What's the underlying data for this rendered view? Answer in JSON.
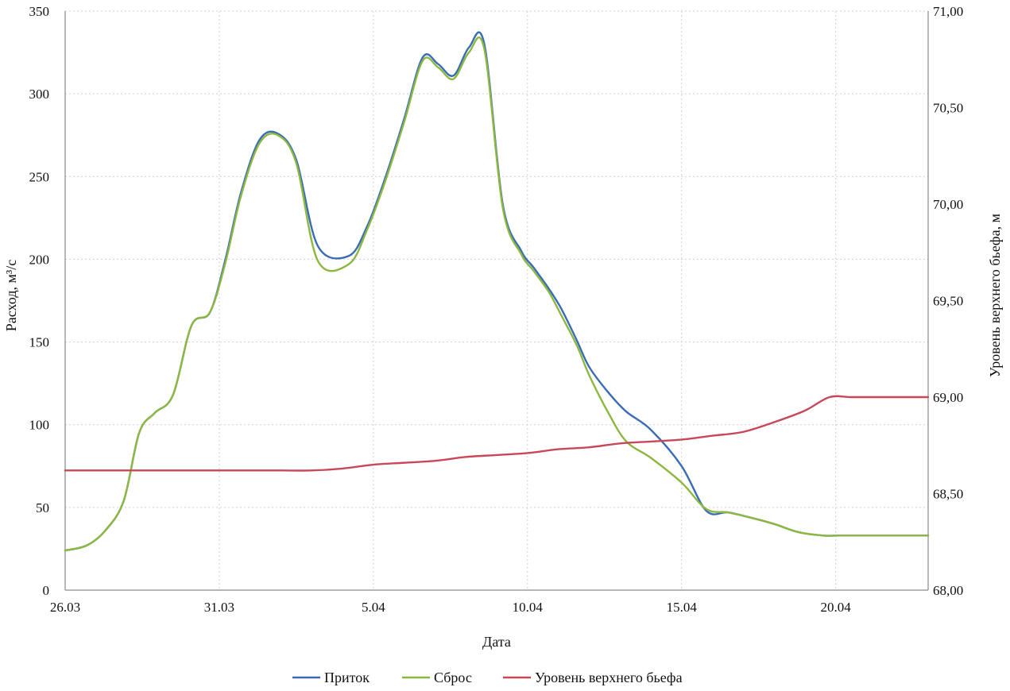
{
  "chart_data": {
    "type": "line",
    "title": "",
    "xlabel": "Дата",
    "ylabel_left": "Расход, м³/с",
    "ylabel_right": "Уровень верхнего бьефа, м",
    "x_ticks": [
      "26.03",
      "31.03",
      "5.04",
      "10.04",
      "15.04",
      "20.04"
    ],
    "x_tick_days": [
      0,
      5,
      10,
      15,
      20,
      25
    ],
    "xlim_days": [
      0,
      28
    ],
    "ylim_left": [
      0,
      350
    ],
    "y_ticks_left": [
      "0",
      "50",
      "100",
      "150",
      "200",
      "250",
      "300",
      "350"
    ],
    "ylim_right": [
      68.0,
      71.0
    ],
    "y_ticks_right": [
      "68,00",
      "68,50",
      "69,00",
      "69,50",
      "70,00",
      "70,50",
      "71,00"
    ],
    "grid": true,
    "legend_position": "bottom",
    "series": [
      {
        "name": "Приток",
        "axis": "left",
        "color": "#3a6cb5",
        "x": [
          0,
          0.7,
          1.3,
          1.9,
          2.4,
          2.9,
          3.5,
          4.1,
          4.7,
          5.2,
          5.7,
          6.3,
          6.9,
          7.5,
          8.2,
          9.2,
          9.8,
          10.4,
          11,
          11.6,
          12.1,
          12.6,
          13.1,
          13.6,
          14.2,
          14.8,
          15.2,
          15.7,
          16.1,
          16.6,
          17.0,
          17.6,
          18.2,
          19.0,
          20.0,
          20.8,
          21.5,
          22.2,
          23.0,
          23.8,
          24.6,
          25.1,
          25.8,
          26.6,
          27.4,
          28.0
        ],
        "values": [
          24,
          27,
          36,
          54,
          95,
          107,
          118,
          160,
          168,
          200,
          240,
          272,
          276,
          260,
          208,
          202,
          220,
          250,
          285,
          322,
          318,
          311,
          328,
          330,
          233,
          205,
          195,
          182,
          170,
          151,
          135,
          120,
          108,
          97,
          75,
          48,
          47,
          44,
          40,
          35,
          33,
          33,
          33,
          33,
          33,
          33
        ]
      },
      {
        "name": "Сброс",
        "axis": "left",
        "color": "#8db840",
        "x": [
          0,
          0.7,
          1.3,
          1.9,
          2.4,
          2.9,
          3.5,
          4.1,
          4.7,
          5.2,
          5.7,
          6.3,
          6.9,
          7.5,
          8.2,
          9.2,
          9.8,
          10.4,
          11,
          11.6,
          12.1,
          12.6,
          13.1,
          13.6,
          14.2,
          14.8,
          15.2,
          15.7,
          16.1,
          16.6,
          17.0,
          17.6,
          18.2,
          19.0,
          20.0,
          20.8,
          21.5,
          22.2,
          23.0,
          23.8,
          24.6,
          25.1,
          25.8,
          26.6,
          27.4,
          28.0
        ],
        "values": [
          24,
          27,
          36,
          54,
          95,
          107,
          118,
          160,
          168,
          198,
          238,
          270,
          275,
          258,
          199,
          197,
          218,
          248,
          283,
          320,
          316,
          309,
          325,
          327,
          231,
          203,
          193,
          180,
          166,
          148,
          130,
          108,
          90,
          80,
          65,
          49,
          47,
          44,
          40,
          35,
          33,
          33,
          33,
          33,
          33,
          33
        ]
      },
      {
        "name": "Уровень верхнего бьефа",
        "axis": "right",
        "color": "#c8485a",
        "x": [
          0,
          2,
          4,
          6,
          7,
          8,
          9,
          10,
          11,
          12,
          13,
          14,
          15,
          16,
          17,
          18,
          19,
          20,
          21,
          22,
          23,
          24,
          24.8,
          25.5,
          26.5,
          28
        ],
        "values": [
          68.62,
          68.62,
          68.62,
          68.62,
          68.62,
          68.62,
          68.63,
          68.65,
          68.66,
          68.67,
          68.69,
          68.7,
          68.71,
          68.73,
          68.74,
          68.76,
          68.77,
          68.78,
          68.8,
          68.82,
          68.87,
          68.93,
          69.0,
          69.0,
          69.0,
          69.0
        ]
      }
    ]
  }
}
